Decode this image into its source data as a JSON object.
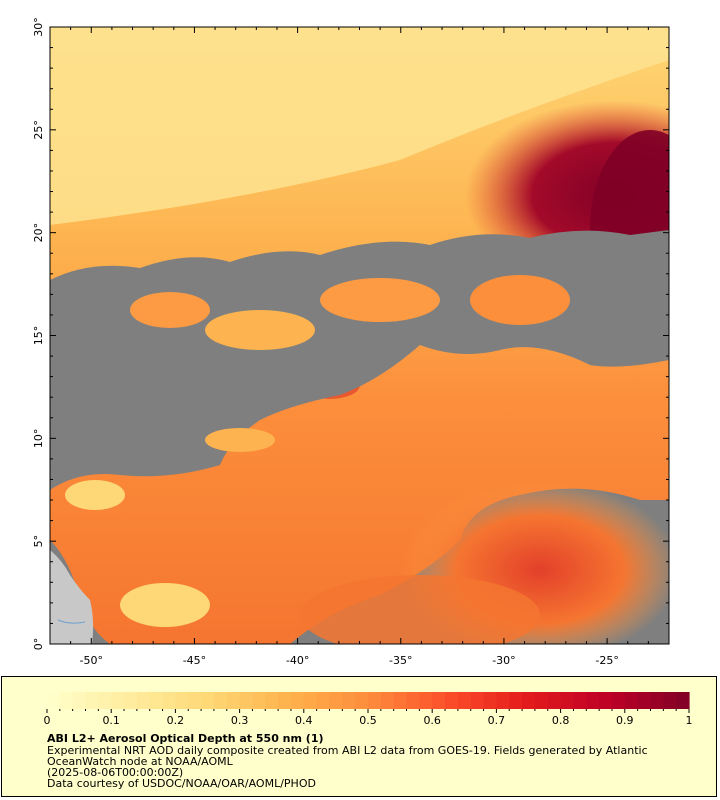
{
  "map": {
    "lon_ticks": [
      "-50°",
      "-45°",
      "-40°",
      "-35°",
      "-30°",
      "-25°"
    ],
    "lat_ticks": [
      "0°",
      "5°",
      "10°",
      "15°",
      "20°",
      "25°",
      "30°"
    ],
    "lon_range": [
      -52,
      -22
    ],
    "lat_range": [
      0,
      30
    ],
    "nodata_color": "#7f7f7f",
    "land_color": "#c8c8c8"
  },
  "colorbar": {
    "ticks": [
      "0",
      "0.1",
      "0.2",
      "0.3",
      "0.4",
      "0.5",
      "0.6",
      "0.7",
      "0.8",
      "0.9",
      "1"
    ],
    "range": [
      0,
      1
    ],
    "colormap": "YlOrRd",
    "low_color": "#ffffcc",
    "high_color": "#800026"
  },
  "caption": {
    "title": "ABI L2+ Aerosol Optical Depth at 550 nm (1)",
    "description": "Experimental NRT AOD daily composite created from ABI L2 data from GOES-19. Fields generated by Atlantic OceanWatch node at NOAA/AOML",
    "time": "(2025-08-06T00:00:00Z)",
    "credit": "Data courtesy of USDOC/NOAA/OAR/AOML/PHOD"
  }
}
